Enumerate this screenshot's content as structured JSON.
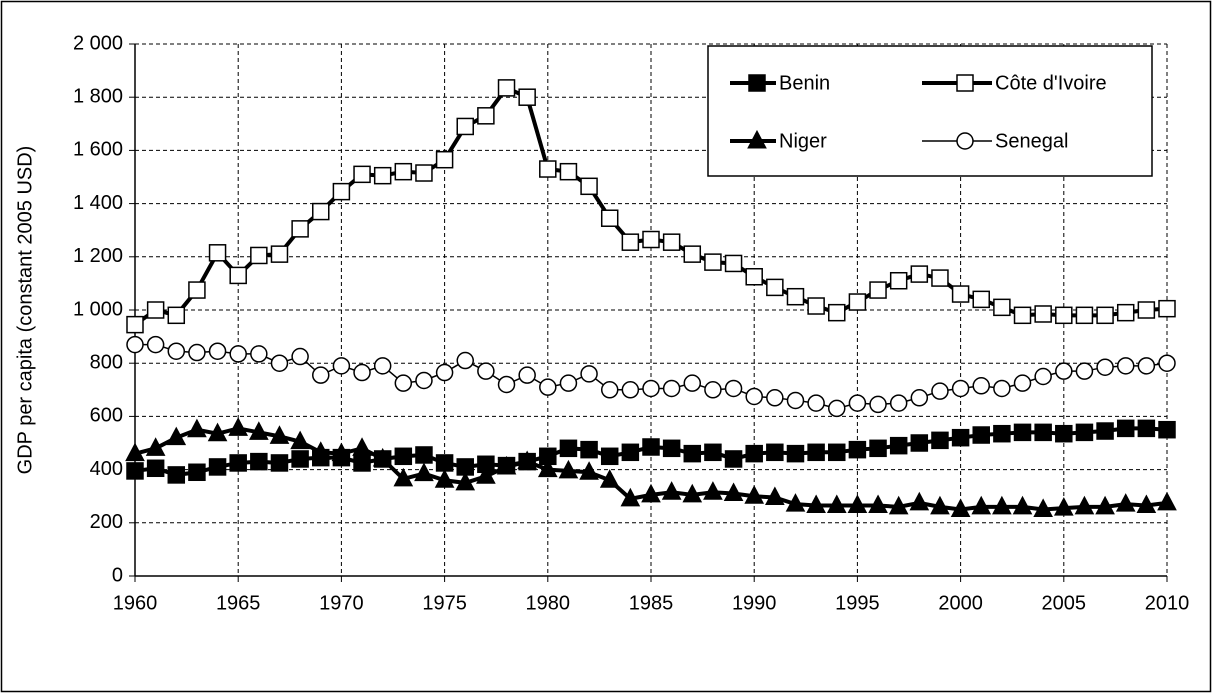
{
  "chart_data": {
    "type": "line",
    "y_label": "GDP per capita (constant 2005 USD)",
    "x": [
      1960,
      1961,
      1962,
      1963,
      1964,
      1965,
      1966,
      1967,
      1968,
      1969,
      1970,
      1971,
      1972,
      1973,
      1974,
      1975,
      1976,
      1977,
      1978,
      1979,
      1980,
      1981,
      1982,
      1983,
      1984,
      1985,
      1986,
      1987,
      1988,
      1989,
      1990,
      1991,
      1992,
      1993,
      1994,
      1995,
      1996,
      1997,
      1998,
      1999,
      2000,
      2001,
      2002,
      2003,
      2004,
      2005,
      2006,
      2007,
      2008,
      2009,
      2010
    ],
    "xlim": [
      1960,
      2010
    ],
    "xticks": [
      1960,
      1965,
      1970,
      1975,
      1980,
      1985,
      1990,
      1995,
      2000,
      2005,
      2010
    ],
    "ylim": [
      0,
      2000
    ],
    "yticks": [
      0,
      200,
      400,
      600,
      800,
      {
        "value": 1000,
        "label": "1 000"
      },
      {
        "value": 1200,
        "label": "1 200"
      },
      {
        "value": 1400,
        "label": "1 400"
      },
      {
        "value": 1600,
        "label": "1 600"
      },
      {
        "value": 1800,
        "label": "1 800"
      },
      {
        "value": 2000,
        "label": "2 000"
      }
    ],
    "grid": true,
    "legend": "upper right",
    "series": [
      {
        "name": "Benin",
        "color": "#000000",
        "marker": "square",
        "line_width": 4,
        "values": [
          395,
          405,
          380,
          390,
          410,
          425,
          430,
          425,
          440,
          445,
          445,
          425,
          440,
          450,
          455,
          425,
          410,
          420,
          415,
          430,
          450,
          480,
          475,
          450,
          465,
          485,
          480,
          460,
          465,
          440,
          460,
          465,
          460,
          465,
          465,
          475,
          480,
          490,
          500,
          510,
          520,
          530,
          535,
          540,
          540,
          535,
          540,
          545,
          555,
          555,
          550
        ]
      },
      {
        "name": "Côte d'Ivoire",
        "color": "#000000",
        "marker": "square-open",
        "line_width": 4,
        "values": [
          945,
          1000,
          980,
          1075,
          1215,
          1130,
          1205,
          1210,
          1305,
          1370,
          1445,
          1510,
          1505,
          1520,
          1515,
          1565,
          1690,
          1730,
          1835,
          1800,
          1530,
          1520,
          1465,
          1345,
          1255,
          1265,
          1255,
          1210,
          1180,
          1175,
          1125,
          1085,
          1050,
          1015,
          990,
          1030,
          1075,
          1110,
          1135,
          1120,
          1060,
          1040,
          1010,
          980,
          985,
          980,
          980,
          980,
          990,
          1000,
          1005
        ]
      },
      {
        "name": "Niger",
        "color": "#000000",
        "marker": "triangle",
        "line_width": 4,
        "values": [
          460,
          480,
          520,
          550,
          535,
          555,
          540,
          525,
          505,
          465,
          460,
          480,
          440,
          365,
          385,
          360,
          350,
          375,
          410,
          430,
          400,
          395,
          390,
          360,
          290,
          305,
          315,
          305,
          315,
          310,
          300,
          295,
          270,
          265,
          265,
          265,
          265,
          260,
          275,
          260,
          250,
          260,
          260,
          260,
          250,
          255,
          260,
          260,
          270,
          265,
          275
        ]
      },
      {
        "name": "Senegal",
        "color": "#000000",
        "marker": "circle-open",
        "line_width": 1.5,
        "values": [
          870,
          870,
          845,
          840,
          845,
          835,
          835,
          800,
          825,
          755,
          790,
          765,
          790,
          725,
          735,
          765,
          810,
          770,
          720,
          755,
          710,
          725,
          760,
          700,
          700,
          705,
          705,
          725,
          700,
          705,
          675,
          670,
          660,
          650,
          630,
          650,
          645,
          650,
          670,
          695,
          705,
          715,
          705,
          725,
          750,
          770,
          770,
          785,
          790,
          790,
          800
        ]
      }
    ]
  }
}
